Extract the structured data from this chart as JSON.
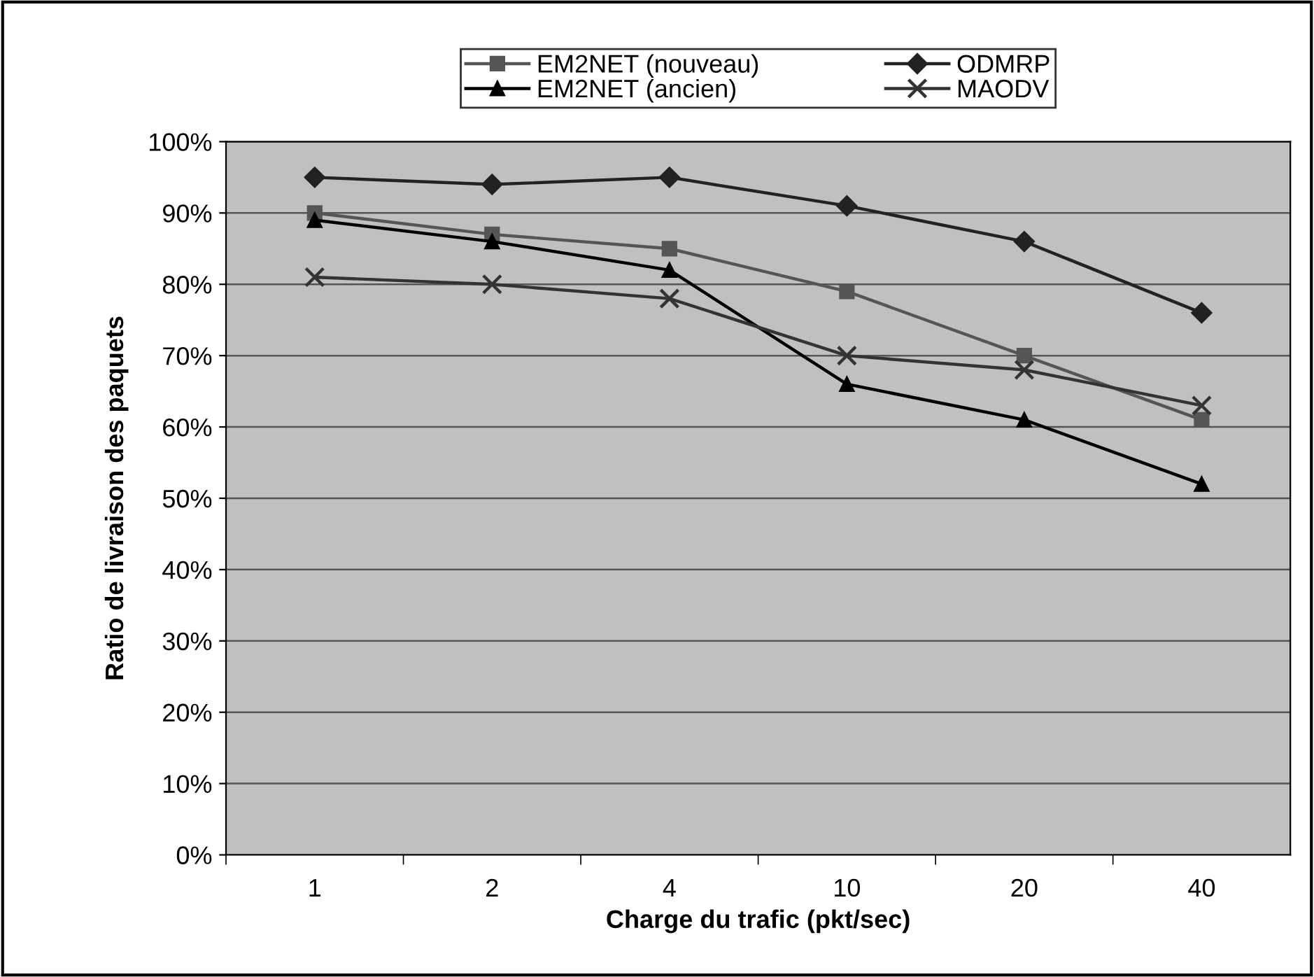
{
  "chart_data": {
    "type": "line",
    "xlabel": "Charge du trafic (pkt/sec)",
    "ylabel": "Ratio de livraison des paquets",
    "categories": [
      "1",
      "2",
      "4",
      "10",
      "20",
      "40"
    ],
    "series": [
      {
        "name": "EM2NET (nouveau)",
        "color": "#555555",
        "marker": "square",
        "values": [
          90,
          87,
          85,
          79,
          70,
          61
        ]
      },
      {
        "name": "EM2NET (ancien)",
        "color": "#000000",
        "marker": "triangle",
        "values": [
          89,
          86,
          82,
          66,
          61,
          52
        ]
      },
      {
        "name": "ODMRP",
        "color": "#222222",
        "marker": "diamond",
        "values": [
          95,
          94,
          95,
          91,
          86,
          76
        ]
      },
      {
        "name": "MAODV",
        "color": "#333333",
        "marker": "cross",
        "values": [
          81,
          80,
          78,
          70,
          68,
          63
        ]
      }
    ],
    "ylim": [
      0,
      100
    ],
    "yticks": [
      {
        "value": 0,
        "label": "0%"
      },
      {
        "value": 10,
        "label": "10%"
      },
      {
        "value": 20,
        "label": "20%"
      },
      {
        "value": 30,
        "label": "30%"
      },
      {
        "value": 40,
        "label": "40%"
      },
      {
        "value": 50,
        "label": "50%"
      },
      {
        "value": 60,
        "label": "60%"
      },
      {
        "value": 70,
        "label": "70%"
      },
      {
        "value": 80,
        "label": "80%"
      },
      {
        "value": 90,
        "label": "90%"
      },
      {
        "value": 100,
        "label": "100%"
      }
    ],
    "grid": "y",
    "legend": "top",
    "line_style": "solid"
  }
}
